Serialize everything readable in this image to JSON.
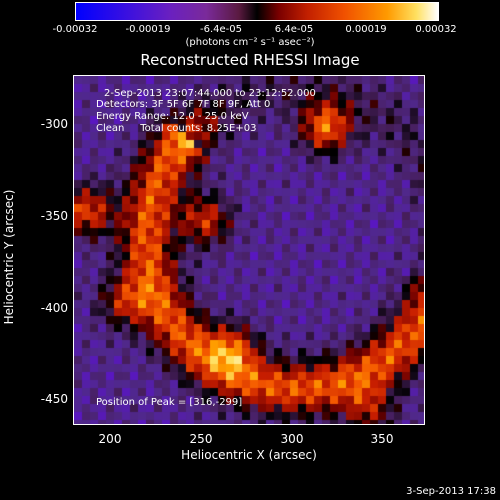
{
  "colorbar": {
    "ticks": [
      "-0.00032",
      "-0.00019",
      "-6.4e-05",
      "6.4e-05",
      "0.00019",
      "0.00032"
    ],
    "units": "(photons cm⁻² s⁻¹ asec⁻²)"
  },
  "chart_data": {
    "type": "heatmap",
    "title": "Reconstructed RHESSI Image",
    "xlabel": "Heliocentric X (arcsec)",
    "ylabel": "Heliocentric Y (arcsec)",
    "xlim": [
      180,
      373
    ],
    "ylim": [
      -465,
      -273
    ],
    "xticks": [
      "200",
      "250",
      "300",
      "350"
    ],
    "yticks": [
      "-300",
      "-350",
      "-400",
      "-450"
    ],
    "colorscale": [
      "#0000ff",
      "#6a20c0",
      "#000000",
      "#c22000",
      "#ff9a00",
      "#ffffff"
    ],
    "clim": [
      -0.00032,
      0.00032
    ],
    "annotations": {
      "time": "2-Sep-2013 23:07:44.000 to 23:12:52.000",
      "detectors": "Detectors: 3F 5F 6F 7F 8F 9F, Att 0",
      "energy": "Energy Range: 12.0 - 25.0 keV",
      "clean": "Clean     Total counts: 8.25E+03",
      "peak": "Position of Peak = [316,-299]"
    },
    "peaks": [
      {
        "x": 316,
        "y": -299,
        "value": 0.00032
      },
      {
        "x": 185,
        "y": -345,
        "value": 0.00028
      },
      {
        "x": 250,
        "y": -350,
        "value": 0.00025
      },
      {
        "x": 265,
        "y": -420,
        "value": 0.00022
      },
      {
        "x": 205,
        "y": -395,
        "value": 0.0002
      },
      {
        "x": 340,
        "y": -455,
        "value": 0.00018
      },
      {
        "x": 245,
        "y": -300,
        "value": 0.00015
      }
    ]
  },
  "timestamp": "3-Sep-2013 17:38"
}
